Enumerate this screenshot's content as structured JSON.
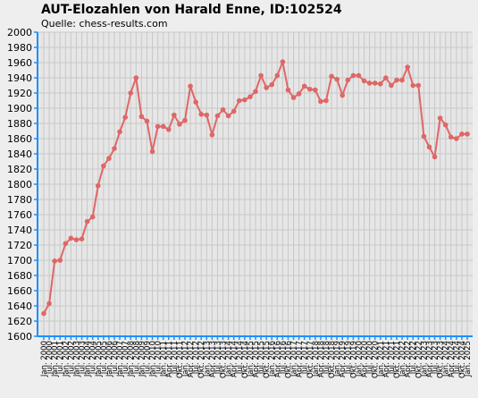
{
  "chart_data": {
    "type": "line",
    "title": "AUT-Elozahlen von Harald Enne, ID:102524",
    "subtitle": "Quelle: chess-results.com",
    "categories": [
      "Jan. 2000",
      "Jul. 2000",
      "Jan. 2001",
      "Jul. 2001",
      "Jan. 2002",
      "Jul. 2002",
      "Jan. 2003",
      "Jul. 2003",
      "Jan. 2004",
      "Jul. 2004",
      "Jan. 2005",
      "Jul. 2005",
      "Jan. 2006",
      "Jul. 2006",
      "Jan. 2007",
      "Jul. 2007",
      "Jan. 2008",
      "Jul. 2008",
      "Jan. 2009",
      "Jul. 2009",
      "Jan. 2010",
      "Jul. 2010",
      "Jan. 2011",
      "Apr. 2011",
      "Jul. 2011",
      "Okt. 2011",
      "Jan. 2012",
      "Apr. 2012",
      "Jul. 2012",
      "Okt. 2012",
      "Jan. 2013",
      "Apr. 2013",
      "Jul. 2013",
      "Okt. 2013",
      "Jan. 2014",
      "Apr. 2014",
      "Jul. 2014",
      "Okt. 2014",
      "Jan. 2015",
      "Apr. 2015",
      "Jul. 2015",
      "Okt. 2015",
      "Jan. 2016",
      "Apr. 2016",
      "Jul. 2016",
      "Okt. 2016",
      "Jan. 2017",
      "Apr. 2017",
      "Jul. 2017",
      "Okt. 2017",
      "Jan. 2018",
      "Apr. 2018",
      "Jul. 2018",
      "Okt. 2018",
      "Jan. 2019",
      "Apr. 2019",
      "Jul. 2019",
      "Okt. 2019",
      "Jan. 2020",
      "Apr. 2020",
      "Jul. 2020",
      "Okt. 2020",
      "Jan. 2021",
      "Apr. 2021",
      "Jul. 2021",
      "Okt. 2021",
      "Jan. 2022",
      "Apr. 2022",
      "Jul. 2022",
      "Okt. 2022",
      "Jan. 2023",
      "Apr. 2023",
      "Jul. 2023",
      "Okt. 2023",
      "Jan. 2024",
      "Apr. 2024",
      "Jul. 2024",
      "Okt. 2024",
      "Jan. 2025"
    ],
    "series": [
      {
        "name": "Elo",
        "color": "#e06666",
        "values": [
          1630,
          1643,
          1699,
          1700,
          1722,
          1729,
          1727,
          1728,
          1751,
          1757,
          1798,
          1824,
          1834,
          1847,
          1869,
          1888,
          1920,
          1940,
          1889,
          1883,
          1843,
          1876,
          1876,
          1872,
          1891,
          1879,
          1884,
          1929,
          1908,
          1892,
          1891,
          1865,
          1890,
          1898,
          1890,
          1896,
          1910,
          1911,
          1915,
          1922,
          1943,
          1927,
          1931,
          1943,
          1961,
          1924,
          1914,
          1919,
          1929,
          1925,
          1924,
          1909,
          1910,
          1942,
          1938,
          1917,
          1937,
          1943,
          1943,
          1936,
          1933,
          1933,
          1932,
          1940,
          1930,
          1937,
          1937,
          1954,
          1930,
          1930,
          1863,
          1849,
          1836,
          1887,
          1878,
          1862,
          1860,
          1866,
          1866
        ]
      }
    ],
    "ylim": [
      1600,
      2000
    ],
    "yticks": [
      1600,
      1620,
      1640,
      1660,
      1680,
      1700,
      1720,
      1740,
      1760,
      1780,
      1800,
      1820,
      1840,
      1860,
      1880,
      1900,
      1920,
      1940,
      1960,
      1980,
      2000
    ],
    "grid": true
  }
}
